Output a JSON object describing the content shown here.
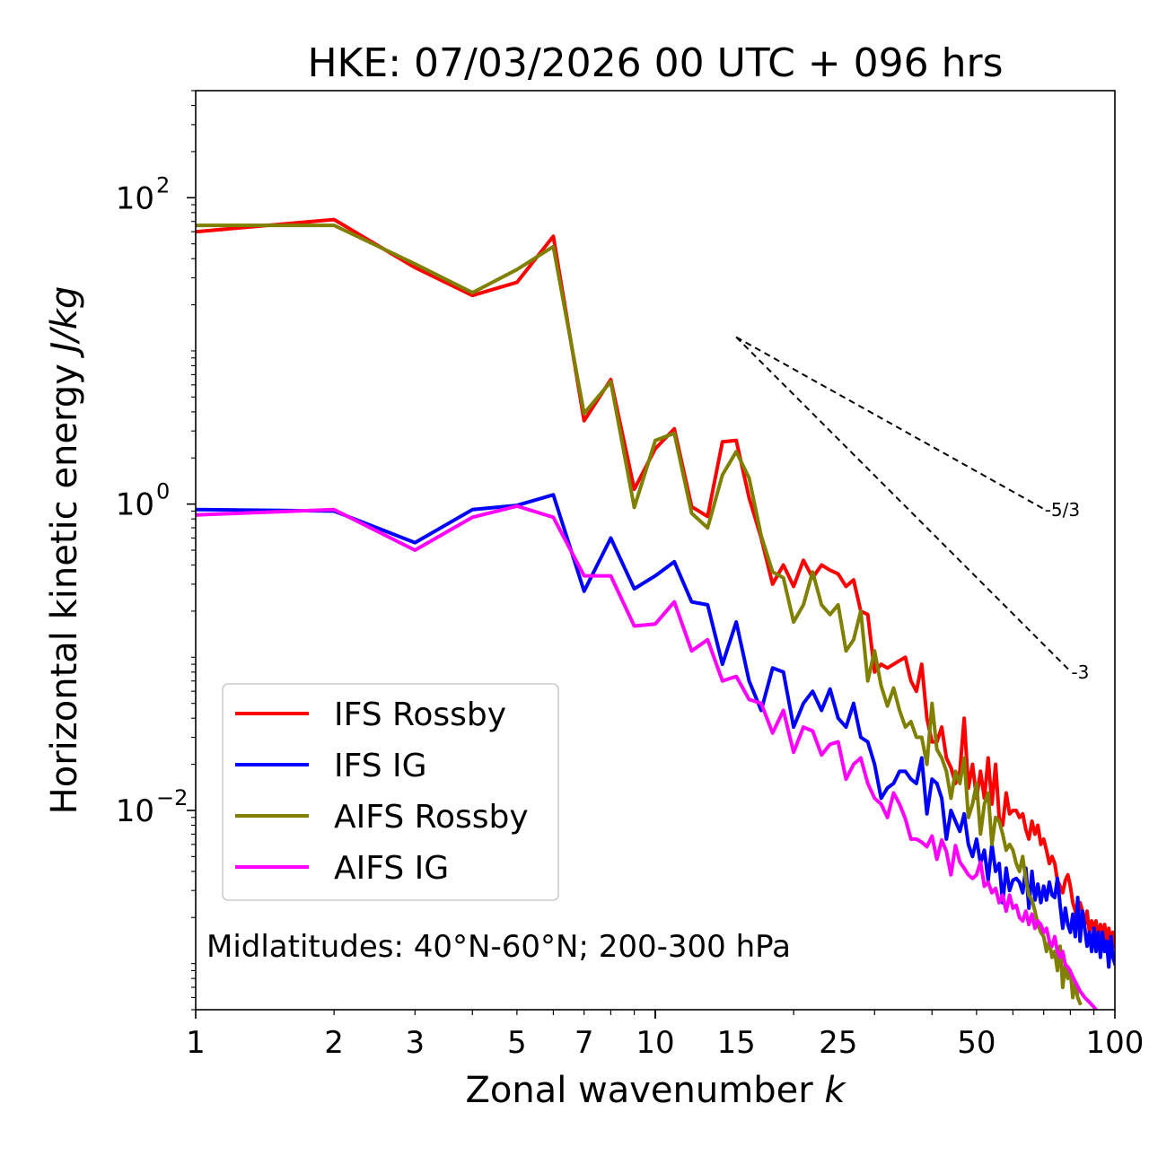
{
  "chart_data": {
    "type": "line",
    "title": "HKE: 07/03/2026 00 UTC + 096 hrs",
    "xlabel": "Zonal wavenumber",
    "xlabel_var": "k",
    "ylabel": "Horizontal kinetic energy",
    "ylabel_unit": "J/kg",
    "xscale": "log",
    "yscale": "log",
    "xlim": [
      1,
      100
    ],
    "ylim": [
      0.0005,
      500
    ],
    "x_ticks": [
      {
        "value": 1,
        "label": "1"
      },
      {
        "value": 2,
        "label": "2"
      },
      {
        "value": 3,
        "label": "3"
      },
      {
        "value": 5,
        "label": "5"
      },
      {
        "value": 7,
        "label": "7"
      },
      {
        "value": 10,
        "label": "10"
      },
      {
        "value": 15,
        "label": "15"
      },
      {
        "value": 25,
        "label": "25"
      },
      {
        "value": 50,
        "label": "50"
      },
      {
        "value": 100,
        "label": "100"
      }
    ],
    "y_ticks": [
      {
        "value": 100,
        "base": "10",
        "exp": "2"
      },
      {
        "value": 1,
        "base": "10",
        "exp": "0"
      },
      {
        "value": 0.01,
        "base": "10",
        "exp": "−2"
      }
    ],
    "annotation": "Midlatitudes: 40°N-60°N; 200-300 hPa",
    "legend_position": "lower-left",
    "reference_lines": [
      {
        "label": "-5/3",
        "x": [
          15,
          70
        ],
        "y": [
          12.3,
          0.93
        ]
      },
      {
        "label": "-3",
        "x": [
          15,
          80
        ],
        "y": [
          12.3,
          0.081
        ]
      }
    ],
    "series": [
      {
        "name": "IFS Rossby",
        "color": "#ff0000",
        "x": [
          1,
          2,
          3,
          4,
          5,
          6,
          7,
          8,
          9,
          10,
          11,
          12,
          13,
          14,
          15,
          16,
          17,
          18,
          19,
          20,
          21,
          22,
          23,
          24,
          25,
          26,
          27,
          28,
          29,
          30,
          31,
          32,
          33,
          34,
          35,
          36,
          37,
          38,
          39,
          40,
          41,
          42,
          43,
          44,
          45,
          46,
          47,
          48,
          49,
          50,
          51,
          52,
          53,
          54,
          55,
          56,
          57,
          58,
          59,
          60,
          61,
          62,
          63,
          64,
          65,
          66,
          67,
          68,
          69,
          70,
          71,
          72,
          73,
          74,
          75,
          76,
          77,
          78,
          79,
          80,
          81,
          82,
          83,
          84,
          85,
          86,
          87,
          88,
          89,
          90,
          91,
          92,
          93,
          94,
          95,
          96,
          97,
          98,
          99,
          100
        ],
        "y": [
          60,
          72,
          35,
          23,
          28,
          56,
          3.5,
          6.5,
          1.25,
          2.3,
          3.1,
          0.96,
          0.83,
          2.55,
          2.6,
          1.1,
          0.6,
          0.3,
          0.4,
          0.29,
          0.43,
          0.33,
          0.4,
          0.37,
          0.35,
          0.29,
          0.32,
          0.2,
          0.19,
          0.08,
          0.09,
          0.085,
          0.09,
          0.095,
          0.1,
          0.07,
          0.06,
          0.09,
          0.04,
          0.028,
          0.028,
          0.035,
          0.022,
          0.019,
          0.015,
          0.018,
          0.04,
          0.014,
          0.02,
          0.012,
          0.018,
          0.012,
          0.022,
          0.011,
          0.02,
          0.009,
          0.008,
          0.013,
          0.0095,
          0.01,
          0.01,
          0.009,
          0.0095,
          0.0075,
          0.0065,
          0.0085,
          0.007,
          0.008,
          0.006,
          0.0065,
          0.0055,
          0.0045,
          0.005,
          0.0045,
          0.0035,
          0.0032,
          0.0029,
          0.0035,
          0.0038,
          0.0032,
          0.0025,
          0.0022,
          0.002,
          0.0025,
          0.0022,
          0.0018,
          0.0022,
          0.0016,
          0.0019,
          0.0017,
          0.0019,
          0.0014,
          0.0018,
          0.0015,
          0.0018,
          0.0013,
          0.0017,
          0.0014,
          0.0016,
          0.0013
        ]
      },
      {
        "name": "IFS IG",
        "color": "#0000ff",
        "x": [
          1,
          2,
          3,
          4,
          5,
          6,
          7,
          8,
          9,
          10,
          11,
          12,
          13,
          14,
          15,
          16,
          17,
          18,
          19,
          20,
          21,
          22,
          23,
          24,
          25,
          26,
          27,
          28,
          29,
          30,
          31,
          32,
          33,
          34,
          35,
          36,
          37,
          38,
          39,
          40,
          41,
          42,
          43,
          44,
          45,
          46,
          47,
          48,
          49,
          50,
          51,
          52,
          53,
          54,
          55,
          56,
          57,
          58,
          59,
          60,
          61,
          62,
          63,
          64,
          65,
          66,
          67,
          68,
          69,
          70,
          71,
          72,
          73,
          74,
          75,
          76,
          77,
          78,
          79,
          80,
          81,
          82,
          83,
          84,
          85,
          86,
          87,
          88,
          89,
          90,
          91,
          92,
          93,
          94,
          95,
          96,
          97,
          98,
          99,
          100
        ],
        "y": [
          0.92,
          0.9,
          0.56,
          0.92,
          0.98,
          1.15,
          0.27,
          0.6,
          0.28,
          0.34,
          0.42,
          0.23,
          0.22,
          0.09,
          0.17,
          0.07,
          0.045,
          0.085,
          0.08,
          0.035,
          0.05,
          0.06,
          0.045,
          0.062,
          0.04,
          0.035,
          0.05,
          0.03,
          0.028,
          0.02,
          0.012,
          0.014,
          0.015,
          0.018,
          0.018,
          0.016,
          0.015,
          0.022,
          0.0095,
          0.016,
          0.015,
          0.012,
          0.0065,
          0.01,
          0.0085,
          0.0073,
          0.0095,
          0.006,
          0.005,
          0.0065,
          0.0045,
          0.0055,
          0.0035,
          0.006,
          0.004,
          0.0045,
          0.0025,
          0.0042,
          0.003,
          0.0035,
          0.0036,
          0.0034,
          0.0029,
          0.0042,
          0.0023,
          0.004,
          0.0026,
          0.0033,
          0.0025,
          0.0032,
          0.0026,
          0.0034,
          0.0028,
          0.0027,
          0.0036,
          0.0024,
          0.0017,
          0.0023,
          0.0018,
          0.0016,
          0.0021,
          0.0015,
          0.0027,
          0.0014,
          0.0022,
          0.0017,
          0.0013,
          0.0016,
          0.0012,
          0.0017,
          0.0012,
          0.0016,
          0.0011,
          0.0016,
          0.0012,
          0.0014,
          0.00095,
          0.0015,
          0.0011,
          0.001
        ]
      },
      {
        "name": "AIFS Rossby",
        "color": "#808000",
        "x": [
          1,
          2,
          3,
          4,
          5,
          6,
          7,
          8,
          9,
          10,
          11,
          12,
          13,
          14,
          15,
          16,
          17,
          18,
          19,
          20,
          21,
          22,
          23,
          24,
          25,
          26,
          27,
          28,
          29,
          30,
          31,
          32,
          33,
          34,
          35,
          36,
          37,
          38,
          39,
          40,
          41,
          42,
          43,
          44,
          45,
          46,
          47,
          48,
          49,
          50,
          51,
          52,
          53,
          54,
          55,
          56,
          57,
          58,
          59,
          60,
          61,
          62,
          63,
          64,
          65,
          66,
          67,
          68,
          69,
          70,
          71,
          72,
          73,
          74,
          75,
          76,
          77,
          78,
          79,
          80,
          81,
          82,
          83,
          84
        ],
        "y": [
          66,
          66,
          37,
          24,
          34,
          48,
          3.9,
          6.3,
          0.95,
          2.6,
          2.9,
          0.87,
          0.7,
          1.55,
          2.2,
          1.48,
          0.62,
          0.36,
          0.33,
          0.17,
          0.22,
          0.36,
          0.22,
          0.19,
          0.22,
          0.11,
          0.13,
          0.2,
          0.07,
          0.11,
          0.065,
          0.048,
          0.063,
          0.045,
          0.035,
          0.038,
          0.03,
          0.03,
          0.02,
          0.05,
          0.025,
          0.022,
          0.018,
          0.012,
          0.018,
          0.015,
          0.022,
          0.009,
          0.011,
          0.015,
          0.007,
          0.011,
          0.013,
          0.006,
          0.009,
          0.0085,
          0.007,
          0.0055,
          0.006,
          0.0055,
          0.0045,
          0.004,
          0.005,
          0.0035,
          0.0028,
          0.0026,
          0.0022,
          0.0018,
          0.0016,
          0.0015,
          0.0012,
          0.0014,
          0.0011,
          0.0012,
          0.0009,
          0.0013,
          0.0007,
          0.001,
          0.0008,
          0.0009,
          0.0006,
          0.00075,
          0.0006,
          0.00055
        ]
      },
      {
        "name": "AIFS IG",
        "color": "#ff00ff",
        "x": [
          1,
          2,
          3,
          4,
          5,
          6,
          7,
          8,
          9,
          10,
          11,
          12,
          13,
          14,
          15,
          16,
          17,
          18,
          19,
          20,
          21,
          22,
          23,
          24,
          25,
          26,
          27,
          28,
          29,
          30,
          31,
          32,
          33,
          34,
          35,
          36,
          37,
          38,
          39,
          40,
          41,
          42,
          43,
          44,
          45,
          46,
          47,
          48,
          49,
          50,
          51,
          52,
          53,
          54,
          55,
          56,
          57,
          58,
          59,
          60,
          61,
          62,
          63,
          64,
          65,
          66,
          67,
          68,
          69,
          70,
          71,
          72,
          73,
          74,
          75,
          76,
          77,
          78,
          79,
          80,
          81,
          82,
          83,
          84,
          85,
          86,
          87,
          88,
          89,
          90,
          91
        ],
        "y": [
          0.85,
          0.92,
          0.5,
          0.82,
          0.97,
          0.82,
          0.34,
          0.34,
          0.16,
          0.165,
          0.23,
          0.11,
          0.13,
          0.07,
          0.075,
          0.053,
          0.05,
          0.032,
          0.045,
          0.024,
          0.035,
          0.033,
          0.023,
          0.027,
          0.028,
          0.016,
          0.02,
          0.022,
          0.015,
          0.012,
          0.011,
          0.009,
          0.013,
          0.011,
          0.0088,
          0.0065,
          0.0065,
          0.0062,
          0.0058,
          0.0068,
          0.0048,
          0.0064,
          0.0054,
          0.0038,
          0.0059,
          0.0046,
          0.0042,
          0.0038,
          0.0036,
          0.0038,
          0.0046,
          0.0032,
          0.0034,
          0.0029,
          0.0031,
          0.0025,
          0.0028,
          0.0022,
          0.0028,
          0.0023,
          0.0024,
          0.002,
          0.0019,
          0.0022,
          0.0018,
          0.0021,
          0.0017,
          0.0019,
          0.0018,
          0.0016,
          0.0017,
          0.0014,
          0.0013,
          0.0015,
          0.0012,
          0.0011,
          0.0012,
          0.00098,
          0.00095,
          0.00089,
          0.00082,
          0.00076,
          0.00071,
          0.00066,
          0.00063,
          0.0006,
          0.00058,
          0.00056,
          0.00054,
          0.00052,
          0.0005
        ]
      }
    ]
  }
}
